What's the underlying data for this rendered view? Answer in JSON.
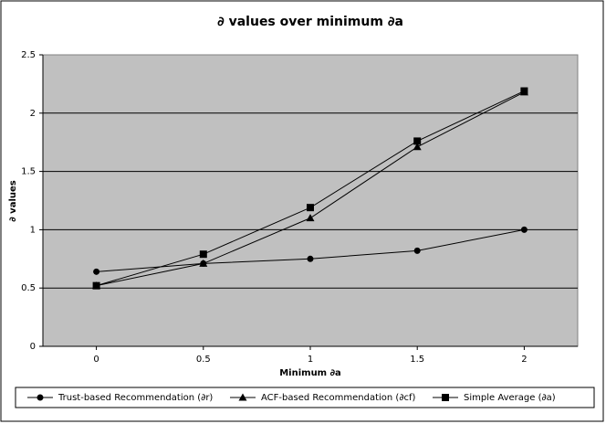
{
  "chart_data": {
    "type": "line",
    "title": "∂ values over minimum ∂a",
    "x_label": "Minimum ∂a",
    "y_label": "∂ values",
    "x": [
      0,
      0.5,
      1,
      1.5,
      2
    ],
    "xlim": [
      -0.25,
      2.25
    ],
    "xticks": [
      0,
      0.5,
      1,
      1.5,
      2
    ],
    "ylim": [
      0,
      2.5
    ],
    "yticks": [
      0,
      0.5,
      1,
      1.5,
      2,
      2.5
    ],
    "grid": true,
    "legend": "bottom",
    "series": [
      {
        "name": "Trust-based Recommendation  (∂r)",
        "color": "#000000",
        "marker": "circle",
        "values": [
          0.64,
          0.71,
          0.75,
          0.82,
          1.0
        ]
      },
      {
        "name": "ACF-based Recommendation (∂cf)",
        "color": "#000000",
        "marker": "triangle",
        "values": [
          0.52,
          0.71,
          1.1,
          1.71,
          2.18
        ]
      },
      {
        "name": "Simple Average  (∂a)",
        "color": "#000000",
        "marker": "square",
        "values": [
          0.52,
          0.79,
          1.19,
          1.76,
          2.19
        ]
      }
    ]
  }
}
